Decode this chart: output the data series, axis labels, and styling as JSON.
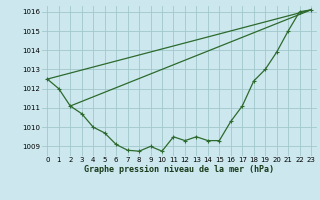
{
  "title": "Graphe pression niveau de la mer (hPa)",
  "bg_color": "#cce8ee",
  "grid_color": "#a0c8cc",
  "line_color": "#2d6a2d",
  "xlim": [
    -0.5,
    23.5
  ],
  "ylim": [
    1008.5,
    1016.3
  ],
  "xticks": [
    0,
    1,
    2,
    3,
    4,
    5,
    6,
    7,
    8,
    9,
    10,
    11,
    12,
    13,
    14,
    15,
    16,
    17,
    18,
    19,
    20,
    21,
    22,
    23
  ],
  "yticks": [
    1009,
    1010,
    1011,
    1012,
    1013,
    1014,
    1015,
    1016
  ],
  "series1_x": [
    0,
    1,
    2,
    3,
    4,
    5,
    6,
    7,
    8,
    9,
    10,
    11,
    12,
    13,
    14,
    15,
    16,
    17,
    18,
    19,
    20,
    21,
    22,
    23
  ],
  "series1_y": [
    1012.5,
    1012.0,
    1011.1,
    1010.7,
    1010.0,
    1009.7,
    1009.1,
    1008.8,
    1008.75,
    1009.0,
    1008.75,
    1009.5,
    1009.3,
    1009.5,
    1009.3,
    1009.3,
    1010.3,
    1011.1,
    1012.4,
    1013.0,
    1013.9,
    1015.0,
    1016.0,
    1016.1
  ],
  "trend1_x": [
    0,
    23
  ],
  "trend1_y": [
    1012.5,
    1016.1
  ],
  "trend2_x": [
    2,
    23
  ],
  "trend2_y": [
    1011.1,
    1016.1
  ],
  "title_fontsize": 6.0,
  "tick_fontsize": 5.0
}
